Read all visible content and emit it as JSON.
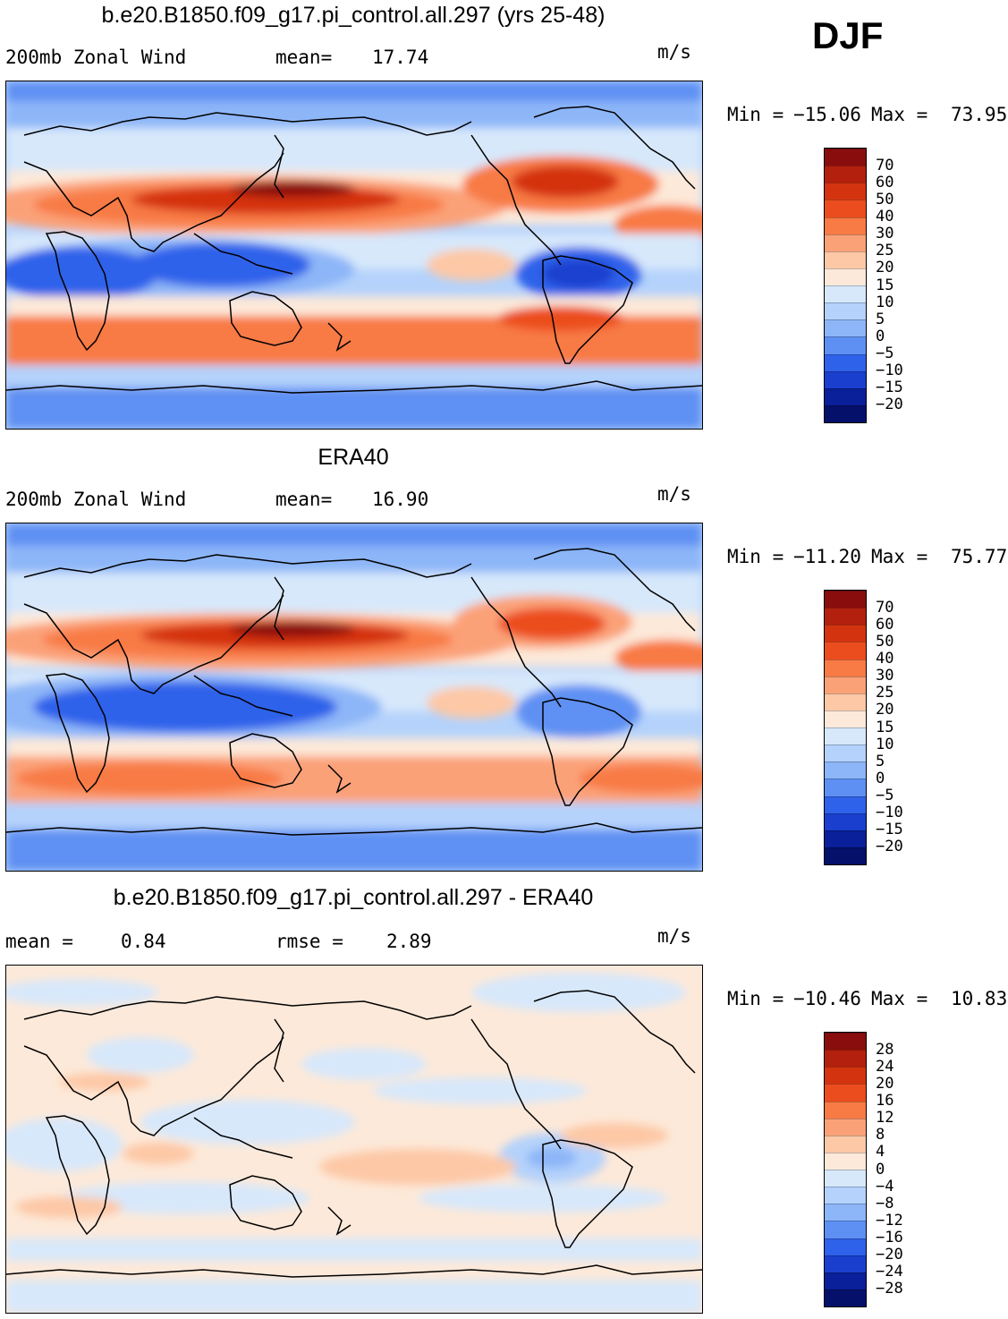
{
  "season": "DJF",
  "panels": [
    {
      "title": "b.e20.B1850.f09_g17.pi_control.all.297 (yrs 25-48)",
      "left_label": "200mb Zonal Wind",
      "stat_label": "mean=",
      "stat_value": "17.74",
      "stat2_label": "",
      "stat2_value": "",
      "units": "m/s",
      "minmax": {
        "min_label": "Min =",
        "min": "−15.06",
        "max_label": "Max =",
        "max": "73.95"
      },
      "colorbar": {
        "labels": [
          "70",
          "60",
          "50",
          "40",
          "30",
          "25",
          "20",
          "15",
          "10",
          "5",
          "0",
          "−5",
          "−10",
          "−15",
          "−20"
        ],
        "colors": [
          "#8a0d0d",
          "#b3200e",
          "#d43310",
          "#ec4d1f",
          "#f87a45",
          "#fba178",
          "#fdc8a6",
          "#fde9d9",
          "#d7e8fb",
          "#b4d2fb",
          "#8db6f8",
          "#5e90f3",
          "#2f62ea",
          "#1a3fcf",
          "#0a1f9a",
          "#04106a"
        ]
      }
    },
    {
      "title": "ERA40",
      "left_label": "200mb Zonal Wind",
      "stat_label": "mean=",
      "stat_value": "16.90",
      "stat2_label": "",
      "stat2_value": "",
      "units": "m/s",
      "minmax": {
        "min_label": "Min =",
        "min": "−11.20",
        "max_label": "Max =",
        "max": "75.77"
      },
      "colorbar": {
        "labels": [
          "70",
          "60",
          "50",
          "40",
          "30",
          "25",
          "20",
          "15",
          "10",
          "5",
          "0",
          "−5",
          "−10",
          "−15",
          "−20"
        ],
        "colors": [
          "#8a0d0d",
          "#b3200e",
          "#d43310",
          "#ec4d1f",
          "#f87a45",
          "#fba178",
          "#fdc8a6",
          "#fde9d9",
          "#d7e8fb",
          "#b4d2fb",
          "#8db6f8",
          "#5e90f3",
          "#2f62ea",
          "#1a3fcf",
          "#0a1f9a",
          "#04106a"
        ]
      }
    },
    {
      "title": "b.e20.B1850.f09_g17.pi_control.all.297 - ERA40",
      "left_label": "mean =",
      "stat_label": "",
      "stat_value": "0.84",
      "stat2_label": "rmse =",
      "stat2_value": "2.89",
      "units": "m/s",
      "minmax": {
        "min_label": "Min =",
        "min": "−10.46",
        "max_label": "Max =",
        "max": "10.83"
      },
      "colorbar": {
        "labels": [
          "28",
          "24",
          "20",
          "16",
          "12",
          "8",
          "4",
          "0",
          "−4",
          "−8",
          "−12",
          "−16",
          "−20",
          "−24",
          "−28"
        ],
        "colors": [
          "#8a0d0d",
          "#b3200e",
          "#d43310",
          "#ec4d1f",
          "#f87a45",
          "#fba178",
          "#fdc8a6",
          "#fde9d9",
          "#d7e8fb",
          "#b4d2fb",
          "#8db6f8",
          "#5e90f3",
          "#2f62ea",
          "#1a3fcf",
          "#0a1f9a",
          "#04106a"
        ]
      }
    }
  ]
}
